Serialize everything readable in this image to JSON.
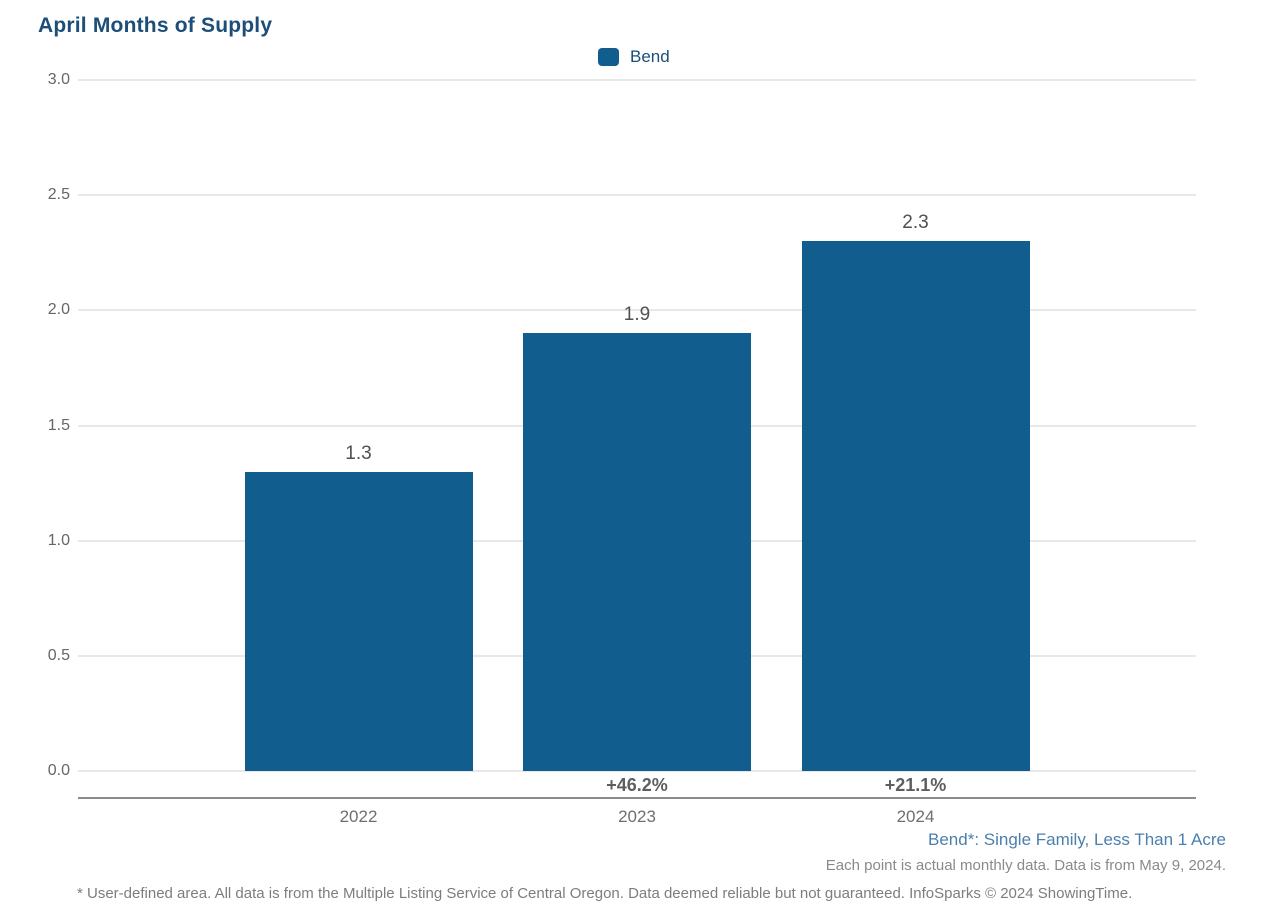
{
  "title": "April Months of Supply",
  "chart_data": {
    "type": "bar",
    "title": "April Months of Supply",
    "categories": [
      "2022",
      "2023",
      "2024"
    ],
    "series": [
      {
        "name": "Bend",
        "color": "#115E8E",
        "values": [
          1.3,
          1.9,
          2.3
        ]
      }
    ],
    "value_labels": [
      "1.3",
      "1.9",
      "2.3"
    ],
    "pct_change_labels": [
      "",
      "+46.2%",
      "+21.1%"
    ],
    "xlabel": "",
    "ylabel": "",
    "ylim": [
      0,
      3
    ],
    "ytick_step": 0.5,
    "yticks": [
      "3.0",
      "2.5",
      "2.0",
      "1.5",
      "1.0",
      "0.5",
      "0.0"
    ],
    "grid": true,
    "legend_position": "top-center"
  },
  "colors": {
    "bar_blue": "#115E8E",
    "title_navy": "#1D4E79",
    "gridline": "#E8E8E8",
    "axis_line": "#8C8C8C",
    "series_note_blue": "#4B7FAD"
  },
  "footer": {
    "series_note": "Bend*: Single Family, Less Than 1 Acre",
    "data_note": "Each point is actual monthly data. Data is from May 9, 2024.",
    "disclaimer": "* User-defined area. All data is from the Multiple Listing Service of Central Oregon. Data deemed reliable but not guaranteed. InfoSparks © 2024 ShowingTime."
  }
}
